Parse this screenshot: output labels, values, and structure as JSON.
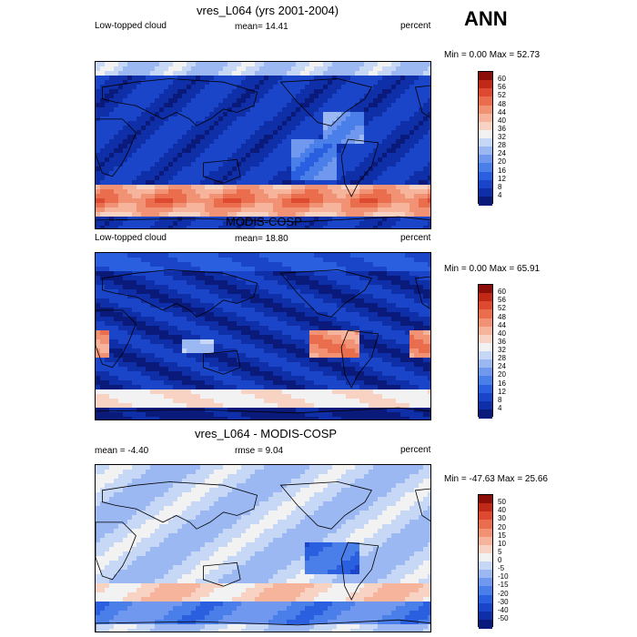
{
  "header": {
    "season": "ANN"
  },
  "panels": [
    {
      "title": "vres_L064 (yrs 2001-2004)",
      "left_label": "Low-topped cloud",
      "center_label": "mean=  14.41",
      "right_label": "percent",
      "minmax": "Min =   0.00 Max =  52.73",
      "kind": "model"
    },
    {
      "title": "MODIS-COSP",
      "left_label": "Low-topped cloud",
      "center_label": "mean=  18.80",
      "right_label": "percent",
      "minmax": "Min =   0.00 Max =  65.91",
      "kind": "obs"
    },
    {
      "title": "vres_L064 - MODIS-COSP",
      "left_label": "mean =  -4.40",
      "center_label": "rmse =   9.04",
      "right_label": "percent",
      "minmax": "Min = -47.63 Max =  25.66",
      "kind": "diff"
    }
  ],
  "chart_data": [
    {
      "type": "heatmap",
      "title": "vres_L064 (yrs 2001-2004)",
      "subtitle": "Low-topped cloud",
      "units": "percent",
      "mean": 14.41,
      "min": 0.0,
      "max": 52.73,
      "colorbar_levels": [
        4,
        8,
        12,
        16,
        20,
        24,
        28,
        32,
        36,
        40,
        44,
        48,
        52,
        56,
        60
      ],
      "colorbar_labels": [
        "60",
        "56",
        "52",
        "48",
        "44",
        "40",
        "36",
        "32",
        "28",
        "24",
        "20",
        "16",
        "12",
        "8",
        "4"
      ],
      "colors": [
        "#0a1a7a",
        "#0f2fa8",
        "#1a45c8",
        "#2a60e0",
        "#4a7ee8",
        "#6f98ee",
        "#9bb8f2",
        "#c7d8f7",
        "#f2f2f2",
        "#f8d2c2",
        "#f7b49c",
        "#f29274",
        "#ea6e4e",
        "#dd4a30",
        "#c02818",
        "#8b0f08"
      ]
    },
    {
      "type": "heatmap",
      "title": "MODIS-COSP",
      "subtitle": "Low-topped cloud",
      "units": "percent",
      "mean": 18.8,
      "min": 0.0,
      "max": 65.91,
      "colorbar_levels": [
        4,
        8,
        12,
        16,
        20,
        24,
        28,
        32,
        36,
        40,
        44,
        48,
        52,
        56,
        60
      ],
      "colorbar_labels": [
        "60",
        "56",
        "52",
        "48",
        "44",
        "40",
        "36",
        "32",
        "28",
        "24",
        "20",
        "16",
        "12",
        "8",
        "4"
      ],
      "colors": [
        "#0a1a7a",
        "#0f2fa8",
        "#1a45c8",
        "#2a60e0",
        "#4a7ee8",
        "#6f98ee",
        "#9bb8f2",
        "#c7d8f7",
        "#f2f2f2",
        "#f8d2c2",
        "#f7b49c",
        "#f29274",
        "#ea6e4e",
        "#dd4a30",
        "#c02818",
        "#8b0f08"
      ]
    },
    {
      "type": "heatmap",
      "title": "vres_L064 - MODIS-COSP",
      "units": "percent",
      "mean": -4.4,
      "rmse": 9.04,
      "min": -47.63,
      "max": 25.66,
      "colorbar_levels": [
        -50,
        -40,
        -30,
        -20,
        -15,
        -10,
        -5,
        0,
        5,
        10,
        15,
        20,
        30,
        40,
        50
      ],
      "colorbar_labels": [
        "50",
        "40",
        "30",
        "20",
        "15",
        "10",
        "5",
        "0",
        "-5",
        "-10",
        "-15",
        "-20",
        "-30",
        "-40",
        "-50"
      ],
      "colors": [
        "#0a1a7a",
        "#0f2fa8",
        "#1a45c8",
        "#2a60e0",
        "#4a7ee8",
        "#6f98ee",
        "#9bb8f2",
        "#c7d8f7",
        "#f2f2f2",
        "#f8d2c2",
        "#f7b49c",
        "#f29274",
        "#ea6e4e",
        "#dd4a30",
        "#c02818",
        "#8b0f08"
      ]
    }
  ]
}
